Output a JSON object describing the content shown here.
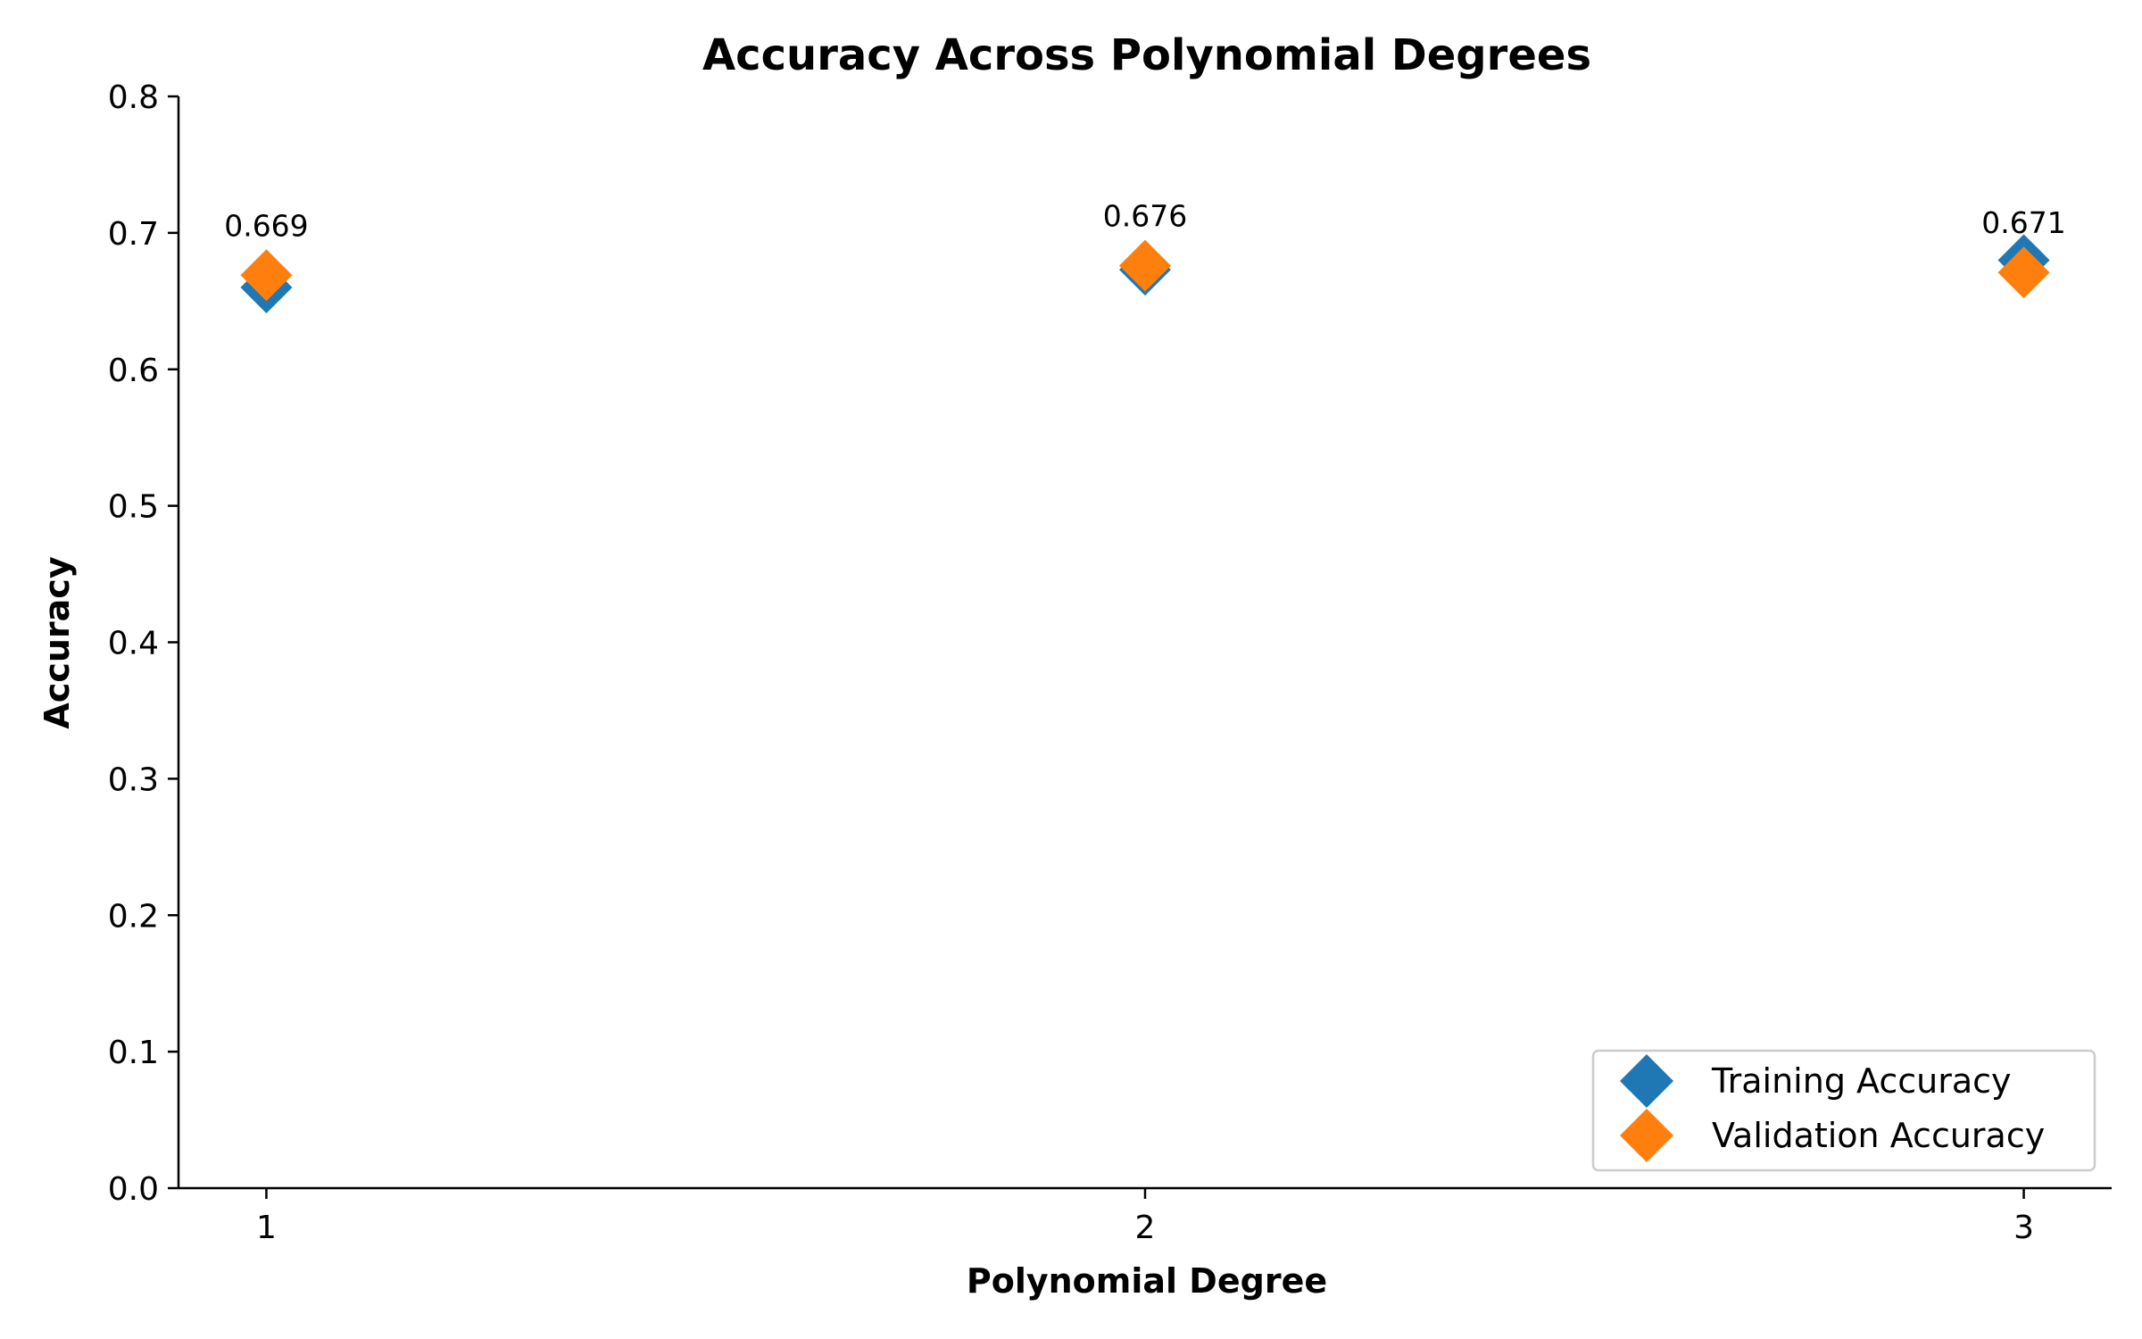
{
  "chart_data": {
    "type": "scatter",
    "title": "Accuracy Across Polynomial Degrees",
    "xlabel": "Polynomial Degree",
    "ylabel": "Accuracy",
    "x": [
      1,
      2,
      3
    ],
    "x_tick_labels": [
      "1",
      "2",
      "3"
    ],
    "xlim": [
      0.9,
      3.1
    ],
    "ylim": [
      0,
      0.8
    ],
    "y_ticks": [
      0.0,
      0.1,
      0.2,
      0.3,
      0.4,
      0.5,
      0.6,
      0.7,
      0.8
    ],
    "y_tick_labels": [
      "0.0",
      "0.1",
      "0.2",
      "0.3",
      "0.4",
      "0.5",
      "0.6",
      "0.7",
      "0.8"
    ],
    "grid": false,
    "legend_position": "lower-right",
    "marker": "diamond",
    "series": [
      {
        "name": "Training Accuracy",
        "values": [
          0.66,
          0.673,
          0.68
        ],
        "color": "#1f77b4"
      },
      {
        "name": "Validation Accuracy",
        "values": [
          0.669,
          0.676,
          0.671
        ],
        "color": "#ff7f0e"
      }
    ],
    "data_labels": [
      "0.669",
      "0.676",
      "0.671"
    ]
  }
}
